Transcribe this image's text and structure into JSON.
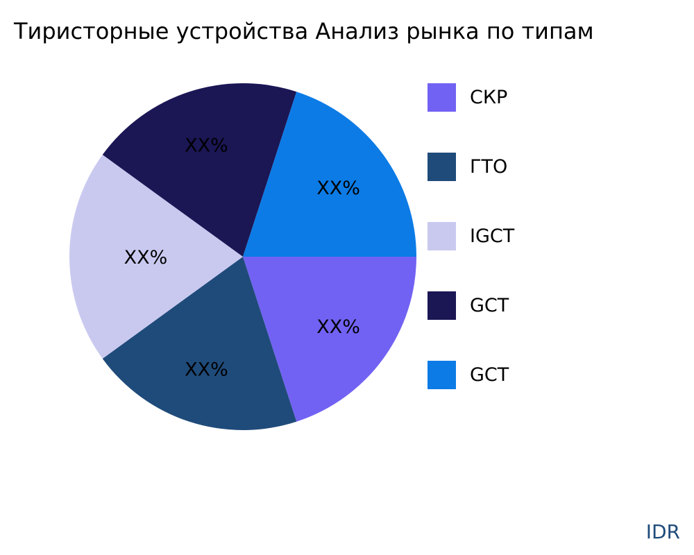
{
  "chart_data": {
    "type": "pie",
    "title": "Тиристорные устройства Анализ рынка по типам",
    "slices": [
      {
        "label": "СКР",
        "value": 20,
        "data_label": "XX%",
        "color": "#7262f3"
      },
      {
        "label": "ГТО",
        "value": 20,
        "data_label": "XX%",
        "color": "#1f4b7a"
      },
      {
        "label": "IGCT",
        "value": 20,
        "data_label": "XX%",
        "color": "#c9c9f0"
      },
      {
        "label": "GCT",
        "value": 20,
        "data_label": "XX%",
        "color": "#1b1654"
      },
      {
        "label": "GCT",
        "value": 20,
        "data_label": "XX%",
        "color": "#0c7be6"
      }
    ],
    "legend_position": "right"
  },
  "watermark": "IDR"
}
